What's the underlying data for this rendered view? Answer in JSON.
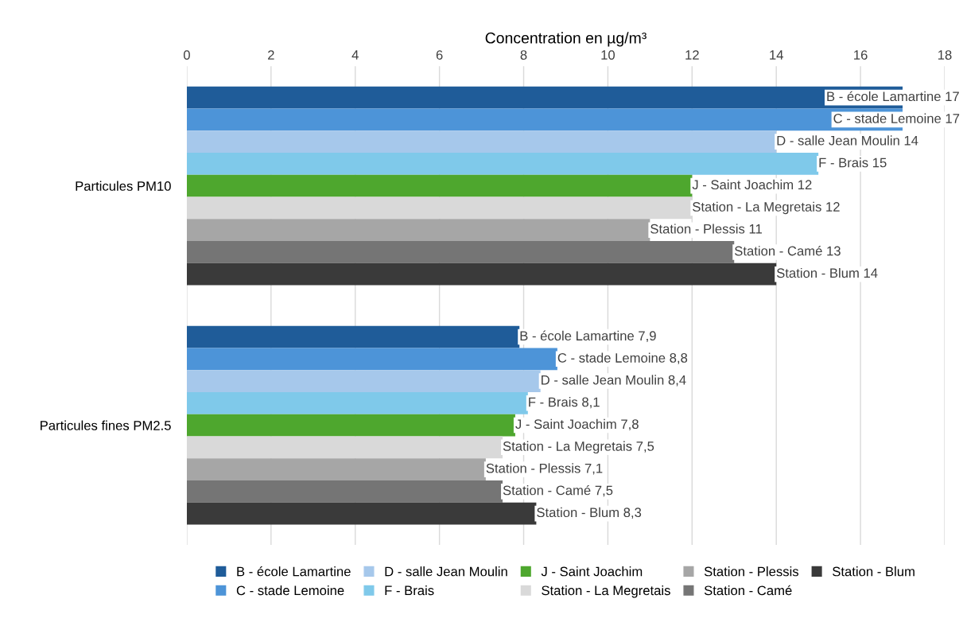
{
  "chart_data": {
    "type": "bar",
    "orientation": "horizontal",
    "xlabel": "Concentration en µg/m³",
    "categories": [
      "Particules PM10",
      "Particules fines PM2.5"
    ],
    "xlim": [
      0,
      18
    ],
    "xticks": [
      0,
      2,
      4,
      6,
      8,
      10,
      12,
      14,
      16,
      18
    ],
    "grid": "x",
    "legend": "bottom",
    "series": [
      {
        "name": "B - école Lamartine",
        "color": "#1f5c99",
        "values": [
          17,
          7.9
        ],
        "value_labels": [
          "B - école Lamartine 17",
          "B - école Lamartine 7,9"
        ]
      },
      {
        "name": "C - stade Lemoine",
        "color": "#4d94d8",
        "values": [
          17,
          8.8
        ],
        "value_labels": [
          "C - stade Lemoine 17",
          "C - stade Lemoine 8,8"
        ]
      },
      {
        "name": "D - salle Jean Moulin",
        "color": "#a6c8eb",
        "values": [
          14,
          8.4
        ],
        "value_labels": [
          "D - salle Jean Moulin 14",
          "D - salle Jean Moulin 8,4"
        ]
      },
      {
        "name": "F - Brais",
        "color": "#7fc9ea",
        "values": [
          15,
          8.1
        ],
        "value_labels": [
          "F - Brais 15",
          "F - Brais 8,1"
        ]
      },
      {
        "name": "J - Saint Joachim",
        "color": "#4ea72e",
        "values": [
          12,
          7.8
        ],
        "value_labels": [
          "J - Saint Joachim 12",
          "J - Saint Joachim 7,8"
        ]
      },
      {
        "name": "Station - La Megretais",
        "color": "#d9d9d9",
        "values": [
          12,
          7.5
        ],
        "value_labels": [
          "Station - La Megretais 12",
          "Station - La Megretais 7,5"
        ]
      },
      {
        "name": "Station - Plessis",
        "color": "#a6a6a6",
        "values": [
          11,
          7.1
        ],
        "value_labels": [
          "Station - Plessis 11",
          "Station - Plessis 7,1"
        ]
      },
      {
        "name": "Station - Camé",
        "color": "#757575",
        "values": [
          13,
          7.5
        ],
        "value_labels": [
          "Station - Camé 13",
          "Station - Camé 7,5"
        ]
      },
      {
        "name": "Station - Blum",
        "color": "#3a3a3a",
        "values": [
          14,
          8.3
        ],
        "value_labels": [
          "Station - Blum 14",
          "Station - Blum 8,3"
        ]
      }
    ]
  }
}
